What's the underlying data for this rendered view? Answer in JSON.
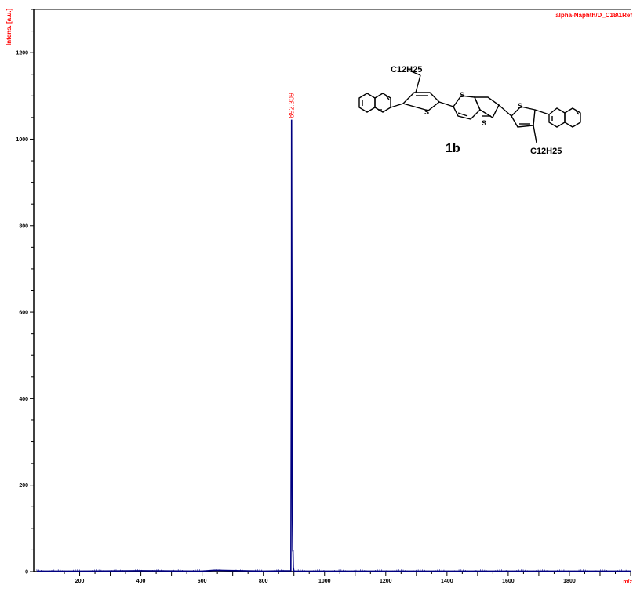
{
  "chart_data": {
    "type": "line",
    "title": "alpha-Naphth/D_C18\\1Ref",
    "xlabel": "m/z",
    "ylabel": "Intens. [a.u.]",
    "xlim": [
      50,
      2000
    ],
    "ylim": [
      0,
      1300
    ],
    "x_ticks": [
      "200",
      "400",
      "600",
      "800",
      "1000",
      "1200",
      "1400",
      "1600",
      "1800"
    ],
    "y_ticks": [
      "0",
      "200",
      "400",
      "600",
      "800",
      "1000",
      "1200"
    ],
    "series": [
      {
        "x": [
          60,
          200,
          400,
          600,
          640,
          800,
          890,
          892,
          892.309,
          893,
          894,
          895,
          896,
          897,
          898,
          900,
          1000,
          1200,
          1400,
          1600,
          1800,
          2000
        ],
        "values": [
          1,
          1,
          2,
          1,
          3,
          1,
          2,
          600,
          1045,
          765,
          430,
          120,
          48,
          48,
          10,
          1,
          1,
          1,
          1,
          1,
          1,
          1
        ]
      }
    ],
    "peak_label": "892.309",
    "color": "#000080"
  },
  "structure": {
    "chain_top": "C12H25",
    "chain_bottom": "C12H25",
    "compound_label": "1b",
    "s1": "S",
    "s2": "S",
    "s3": "S",
    "s4": "S"
  }
}
